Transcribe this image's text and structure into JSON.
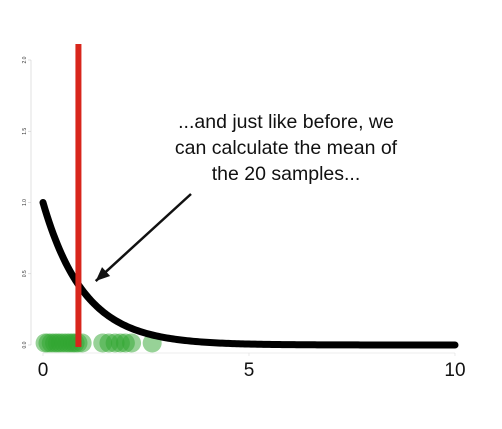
{
  "chart_data": {
    "type": "line",
    "title": "",
    "xlabel": "",
    "ylabel": "",
    "xlim": [
      0,
      10
    ],
    "ylim": [
      0,
      2
    ],
    "x_ticks": [
      0,
      5,
      10
    ],
    "x_tick_labels": [
      "0",
      "5",
      "10"
    ],
    "y_ticks": [
      0,
      0.5,
      1,
      1.5,
      2
    ],
    "y_tick_labels": [
      "0.0",
      "0.5",
      "1.0",
      "1.5",
      "2.0"
    ],
    "grid": false,
    "series": [
      {
        "kind": "curve",
        "function": "exp(-x)",
        "color": "#000000",
        "x": [
          0,
          0.25,
          0.5,
          0.75,
          1,
          1.25,
          1.5,
          1.75,
          2,
          2.5,
          3,
          3.5,
          4,
          5,
          6,
          7,
          8,
          9,
          10
        ],
        "y": [
          1.0,
          0.7788,
          0.6065,
          0.4724,
          0.3679,
          0.2865,
          0.2231,
          0.1738,
          0.1353,
          0.0821,
          0.0498,
          0.0302,
          0.0183,
          0.0067,
          0.0025,
          0.0009,
          0.0003,
          0.0001,
          0.0
        ]
      },
      {
        "kind": "samples",
        "color": "#2fa52f",
        "x": [
          0.05,
          0.12,
          0.2,
          0.28,
          0.35,
          0.42,
          0.5,
          0.58,
          0.65,
          0.72,
          0.78,
          0.85,
          0.95,
          1.45,
          1.6,
          1.75,
          1.88,
          2.0,
          2.15,
          2.65
        ],
        "y": [
          0,
          0,
          0,
          0,
          0,
          0,
          0,
          0,
          0,
          0,
          0,
          0,
          0,
          0,
          0,
          0,
          0,
          0,
          0,
          0
        ]
      },
      {
        "kind": "vertical-line",
        "color": "#d8261c",
        "x": 0.86
      }
    ],
    "annotation": {
      "lines": [
        "...and just like before, we",
        "can calculate the mean of",
        "the 20 samples..."
      ],
      "arrow_target_x": 1.28,
      "arrow_target_y": 0.47
    }
  }
}
